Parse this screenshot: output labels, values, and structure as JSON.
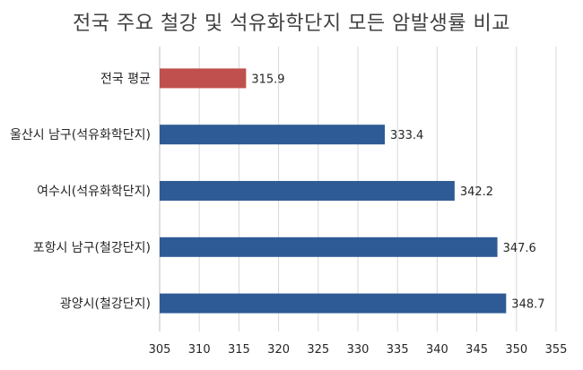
{
  "chart_data": {
    "type": "bar",
    "orientation": "horizontal",
    "title": "전국 주요 철강 및 석유화학단지 모든 암발생률 비교",
    "xlabel": "",
    "ylabel": "",
    "categories": [
      "전국 평균",
      "울산시 남구(석유화학단지)",
      "여수시(석유화학단지)",
      "포항시 남구(철강단지)",
      "광양시(철강단지)"
    ],
    "values": [
      315.9,
      333.4,
      342.2,
      347.6,
      348.7
    ],
    "data_labels": [
      "315.9",
      "333.4",
      "342.2",
      "347.6",
      "348.7"
    ],
    "bar_colors": [
      "#c0504d",
      "#2e5b95",
      "#2e5b95",
      "#2e5b95",
      "#2e5b95"
    ],
    "xlim": [
      305,
      355
    ],
    "x_ticks": [
      305,
      310,
      315,
      320,
      325,
      330,
      335,
      340,
      345,
      350,
      355
    ],
    "grid": "vertical",
    "legend": "none"
  }
}
